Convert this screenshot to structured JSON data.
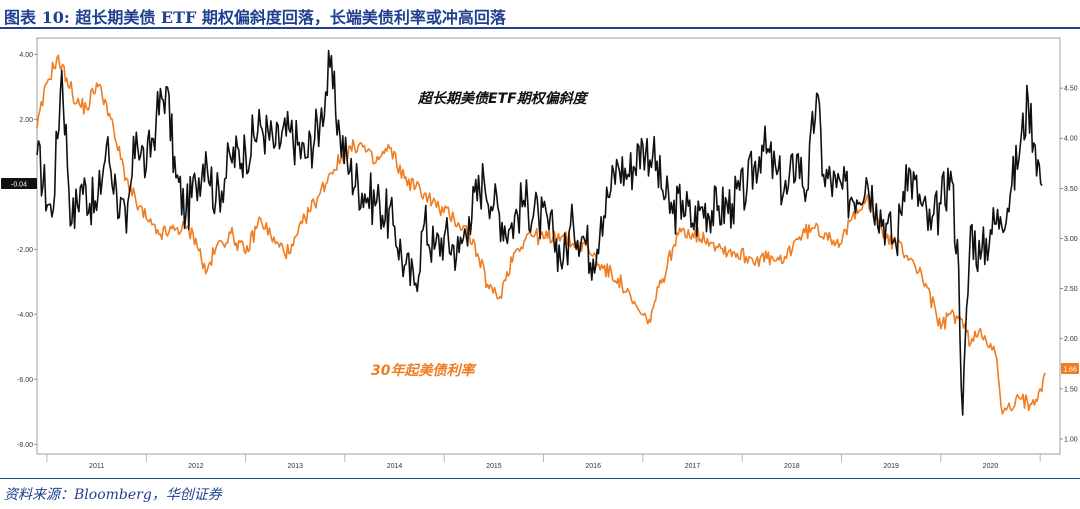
{
  "header": {
    "title": "图表 10: 超长期美债 ETF 期权偏斜度回落，长端美债利率或冲高回落"
  },
  "footer": {
    "source": "资料来源：Bloomberg，华创证券"
  },
  "chart_data": {
    "type": "line",
    "title": "图表 10: 超长期美债 ETF 期权偏斜度回落，长端美债利率或冲高回落",
    "x_ticks": [
      "2011",
      "2012",
      "2013",
      "2014",
      "2015",
      "2016",
      "2017",
      "2018",
      "2019",
      "2020"
    ],
    "x_range": [
      2010.4,
      2020.7
    ],
    "left_axis": {
      "ylim": [
        -8.3,
        4.5
      ],
      "ticks": [
        "4.00",
        "2.00",
        "-2.00",
        "-4.00",
        "-6.00",
        "-8.00"
      ]
    },
    "right_axis": {
      "ylim": [
        0.85,
        5.0
      ],
      "ticks": [
        "4.50",
        "4.00",
        "3.50",
        "3.00",
        "2.50",
        "2.00",
        "1.50",
        "1.00"
      ]
    },
    "last_value_labels": {
      "skew": "-0.04",
      "yield": "1.66"
    },
    "series": [
      {
        "name": "超长期美债ETF期权偏斜度",
        "axis": "left",
        "color": "#111111",
        "points": [
          [
            2010.4,
            0.9
          ],
          [
            2010.55,
            -1.0
          ],
          [
            2010.65,
            3.5
          ],
          [
            2010.75,
            -1.2
          ],
          [
            2010.85,
            0.0
          ],
          [
            2011.0,
            -0.8
          ],
          [
            2011.1,
            1.2
          ],
          [
            2011.2,
            -0.2
          ],
          [
            2011.3,
            -1.5
          ],
          [
            2011.4,
            1.6
          ],
          [
            2011.5,
            0.5
          ],
          [
            2011.6,
            2.0
          ],
          [
            2011.7,
            3.0
          ],
          [
            2011.8,
            0.2
          ],
          [
            2011.9,
            -0.9
          ],
          [
            2012.0,
            0.0
          ],
          [
            2012.1,
            1.0
          ],
          [
            2012.2,
            -0.5
          ],
          [
            2012.35,
            0.8
          ],
          [
            2012.5,
            1.0
          ],
          [
            2012.65,
            1.8
          ],
          [
            2012.8,
            1.2
          ],
          [
            2012.95,
            1.6
          ],
          [
            2013.1,
            0.8
          ],
          [
            2013.25,
            1.9
          ],
          [
            2013.35,
            3.6
          ],
          [
            2013.45,
            1.5
          ],
          [
            2013.55,
            0.4
          ],
          [
            2013.7,
            -0.3
          ],
          [
            2013.85,
            -0.6
          ],
          [
            2014.0,
            -1.3
          ],
          [
            2014.1,
            -2.5
          ],
          [
            2014.2,
            -3.1
          ],
          [
            2014.3,
            -1.2
          ],
          [
            2014.4,
            -2.0
          ],
          [
            2014.5,
            -1.6
          ],
          [
            2014.65,
            -2.1
          ],
          [
            2014.75,
            -1.0
          ],
          [
            2014.9,
            0.2
          ],
          [
            2015.0,
            -0.6
          ],
          [
            2015.15,
            -1.4
          ],
          [
            2015.3,
            -0.5
          ],
          [
            2015.45,
            -1.0
          ],
          [
            2015.6,
            -1.6
          ],
          [
            2015.7,
            -2.3
          ],
          [
            2015.8,
            -1.2
          ],
          [
            2015.9,
            -1.6
          ],
          [
            2016.0,
            -2.3
          ],
          [
            2016.08,
            -1.0
          ],
          [
            2016.15,
            -0.4
          ],
          [
            2016.25,
            0.6
          ],
          [
            2016.35,
            0.3
          ],
          [
            2016.5,
            1.2
          ],
          [
            2016.6,
            0.9
          ],
          [
            2016.7,
            -0.2
          ],
          [
            2016.8,
            -0.9
          ],
          [
            2016.9,
            -0.5
          ],
          [
            2017.0,
            -1.2
          ],
          [
            2017.1,
            -0.7
          ],
          [
            2017.25,
            -0.8
          ],
          [
            2017.4,
            -0.6
          ],
          [
            2017.55,
            -0.1
          ],
          [
            2017.7,
            1.2
          ],
          [
            2017.85,
            0.3
          ],
          [
            2017.95,
            -0.3
          ],
          [
            2018.05,
            0.9
          ],
          [
            2018.15,
            -0.2
          ],
          [
            2018.25,
            2.8
          ],
          [
            2018.32,
            0.3
          ],
          [
            2018.45,
            -0.1
          ],
          [
            2018.6,
            -0.4
          ],
          [
            2018.75,
            0.2
          ],
          [
            2018.85,
            -0.6
          ],
          [
            2018.95,
            -1.2
          ],
          [
            2019.05,
            -1.9
          ],
          [
            2019.15,
            0.6
          ],
          [
            2019.3,
            -0.6
          ],
          [
            2019.4,
            -1.4
          ],
          [
            2019.5,
            -0.6
          ],
          [
            2019.6,
            0.4
          ],
          [
            2019.68,
            -2.6
          ],
          [
            2019.72,
            -7.1
          ],
          [
            2019.8,
            -1.3
          ],
          [
            2019.9,
            -2.3
          ],
          [
            2020.0,
            -1.4
          ],
          [
            2020.1,
            -1.0
          ],
          [
            2020.2,
            -0.3
          ],
          [
            2020.3,
            1.2
          ],
          [
            2020.38,
            2.6
          ],
          [
            2020.45,
            1.2
          ],
          [
            2020.52,
            -0.04
          ]
        ]
      },
      {
        "name": "30年起美债利率",
        "axis": "right",
        "color": "#ef7d22",
        "points": [
          [
            2010.4,
            4.1
          ],
          [
            2010.5,
            4.55
          ],
          [
            2010.6,
            4.8
          ],
          [
            2010.7,
            4.6
          ],
          [
            2010.8,
            4.35
          ],
          [
            2010.9,
            4.3
          ],
          [
            2011.0,
            4.55
          ],
          [
            2011.1,
            4.35
          ],
          [
            2011.2,
            3.95
          ],
          [
            2011.3,
            3.6
          ],
          [
            2011.4,
            3.35
          ],
          [
            2011.5,
            3.2
          ],
          [
            2011.6,
            3.05
          ],
          [
            2011.7,
            3.05
          ],
          [
            2011.8,
            3.1
          ],
          [
            2011.9,
            3.1
          ],
          [
            2012.0,
            3.0
          ],
          [
            2012.1,
            2.65
          ],
          [
            2012.2,
            2.9
          ],
          [
            2012.35,
            3.05
          ],
          [
            2012.5,
            2.85
          ],
          [
            2012.65,
            3.2
          ],
          [
            2012.8,
            2.95
          ],
          [
            2012.95,
            2.85
          ],
          [
            2013.1,
            3.2
          ],
          [
            2013.25,
            3.45
          ],
          [
            2013.35,
            3.65
          ],
          [
            2013.5,
            3.85
          ],
          [
            2013.65,
            3.95
          ],
          [
            2013.8,
            3.75
          ],
          [
            2013.95,
            3.9
          ],
          [
            2014.1,
            3.6
          ],
          [
            2014.3,
            3.45
          ],
          [
            2014.45,
            3.3
          ],
          [
            2014.6,
            3.2
          ],
          [
            2014.75,
            3.05
          ],
          [
            2014.85,
            2.8
          ],
          [
            2014.95,
            2.5
          ],
          [
            2015.05,
            2.4
          ],
          [
            2015.2,
            2.85
          ],
          [
            2015.35,
            3.05
          ],
          [
            2015.5,
            3.0
          ],
          [
            2015.65,
            3.05
          ],
          [
            2015.8,
            2.95
          ],
          [
            2015.95,
            2.9
          ],
          [
            2016.1,
            2.7
          ],
          [
            2016.25,
            2.6
          ],
          [
            2016.4,
            2.35
          ],
          [
            2016.55,
            2.15
          ],
          [
            2016.7,
            2.6
          ],
          [
            2016.8,
            2.9
          ],
          [
            2016.9,
            3.1
          ],
          [
            2017.0,
            3.05
          ],
          [
            2017.15,
            3.0
          ],
          [
            2017.3,
            2.9
          ],
          [
            2017.45,
            2.85
          ],
          [
            2017.6,
            2.8
          ],
          [
            2017.75,
            2.8
          ],
          [
            2017.9,
            2.75
          ],
          [
            2018.05,
            3.0
          ],
          [
            2018.2,
            3.1
          ],
          [
            2018.35,
            3.05
          ],
          [
            2018.5,
            2.95
          ],
          [
            2018.65,
            3.3
          ],
          [
            2018.75,
            3.4
          ],
          [
            2018.85,
            3.2
          ],
          [
            2018.95,
            3.0
          ],
          [
            2019.05,
            2.95
          ],
          [
            2019.2,
            2.8
          ],
          [
            2019.35,
            2.55
          ],
          [
            2019.5,
            2.1
          ],
          [
            2019.6,
            2.25
          ],
          [
            2019.7,
            2.2
          ],
          [
            2019.8,
            1.95
          ],
          [
            2019.9,
            2.1
          ],
          [
            2020.0,
            1.95
          ],
          [
            2020.05,
            1.85
          ],
          [
            2020.12,
            1.25
          ],
          [
            2020.2,
            1.3
          ],
          [
            2020.3,
            1.4
          ],
          [
            2020.4,
            1.35
          ],
          [
            2020.5,
            1.5
          ],
          [
            2020.55,
            1.66
          ]
        ]
      }
    ],
    "annotations": [
      {
        "text": "超长期美债ETF期权偏斜度",
        "color": "#111111"
      },
      {
        "text": "30年起美债利率",
        "color": "#ef7d22"
      }
    ]
  }
}
